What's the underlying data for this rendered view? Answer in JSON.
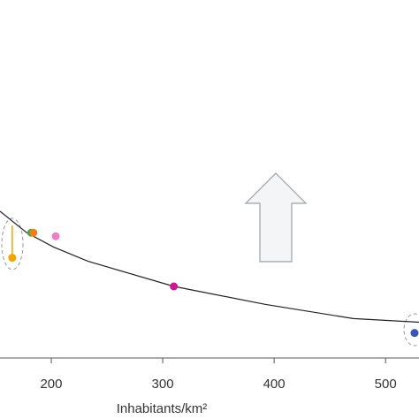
{
  "chart_data": {
    "type": "scatter",
    "x_label": "Inhabitants/km²",
    "xlim": [
      154,
      530
    ],
    "ylim": [
      0,
      100
    ],
    "xticks": [
      200,
      300,
      400,
      500
    ],
    "points": {
      "x": [
        165,
        182,
        184,
        204,
        310,
        526
      ],
      "values": [
        28,
        35,
        35,
        34,
        20,
        7
      ],
      "colors": [
        "#f0a500",
        "#3aa845",
        "#f07f1a",
        "#ee7fc6",
        "#cc1a8e",
        "#3a55b0"
      ],
      "error_up": [
        9,
        null,
        null,
        null,
        null,
        null
      ]
    },
    "fit": {
      "color": "#222222",
      "x": [
        154,
        178,
        202,
        233,
        310,
        392,
        471,
        530
      ],
      "values": [
        41,
        35,
        31,
        27,
        20,
        15,
        11,
        10
      ]
    }
  }
}
